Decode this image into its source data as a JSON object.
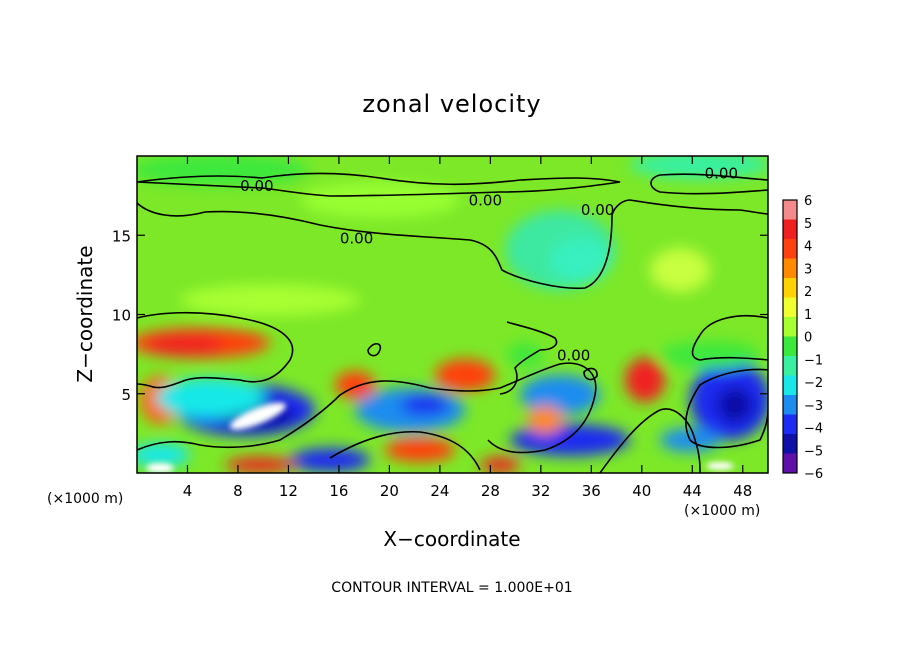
{
  "chart_data": {
    "type": "heatmap",
    "title": "zonal velocity",
    "xlabel": "X−coordinate",
    "ylabel": "Z−coordinate",
    "x_unit_left": "(×1000 m)",
    "x_unit_right": "(×1000 m)",
    "footer": "CONTOUR INTERVAL = 1.000E+01",
    "xlim": [
      0,
      50
    ],
    "ylim": [
      0,
      20
    ],
    "x_ticks": [
      4,
      8,
      12,
      16,
      20,
      24,
      28,
      32,
      36,
      40,
      44,
      48
    ],
    "x_tick_labels": [
      "4",
      "8",
      "12",
      "16",
      "20",
      "24",
      "28",
      "32",
      "36",
      "40",
      "44",
      "48"
    ],
    "y_ticks": [
      5,
      10,
      15
    ],
    "y_tick_labels": [
      "5",
      "10",
      "15"
    ],
    "colorbar": {
      "levels": [
        6,
        5,
        4,
        3,
        2,
        1,
        0,
        -1,
        -2,
        -3,
        -4,
        -5,
        -6
      ],
      "labels": [
        "6",
        "5",
        "4",
        "3",
        "2",
        "1",
        "0",
        "−1",
        "−2",
        "−3",
        "−4",
        "−5",
        "−6"
      ],
      "colors": [
        "#f48a8a",
        "#f02020",
        "#ff4010",
        "#ff8a00",
        "#ffd200",
        "#f0ff30",
        "#a8ff30",
        "#3ce83c",
        "#38f0a0",
        "#18e8e8",
        "#1c8cf0",
        "#1c2cf0",
        "#1010a8",
        "#6010a8"
      ]
    },
    "contour_labels": [
      {
        "text": "0.00",
        "x": 9.5,
        "y": 18.1
      },
      {
        "text": "0.00",
        "x": 27.6,
        "y": 17.2
      },
      {
        "text": "0.00",
        "x": 36.5,
        "y": 16.6
      },
      {
        "text": "0.00",
        "x": 17.4,
        "y": 14.8
      },
      {
        "text": "0.00",
        "x": 34.6,
        "y": 7.4
      },
      {
        "text": "0.00",
        "x": 46.3,
        "y": 18.9
      }
    ]
  }
}
